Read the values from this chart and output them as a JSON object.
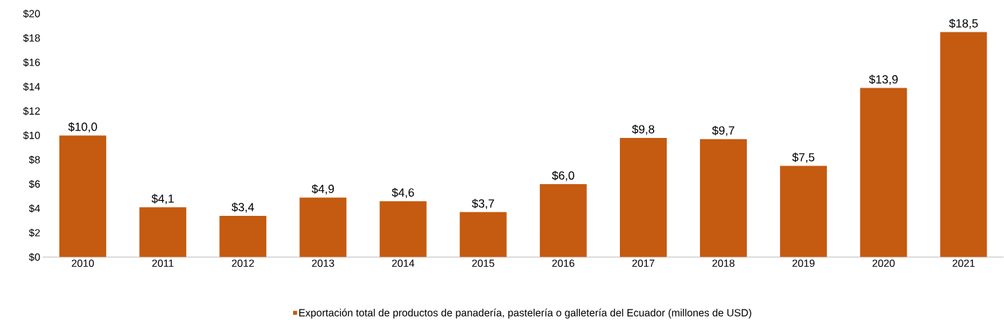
{
  "chart_data": {
    "type": "bar",
    "categories": [
      "2010",
      "2011",
      "2012",
      "2013",
      "2014",
      "2015",
      "2016",
      "2017",
      "2018",
      "2019",
      "2020",
      "2021"
    ],
    "series": [
      {
        "name": "Exportación total de productos de panadería, pastelería o galletería del Ecuador (millones de USD)",
        "color": "#c55a11",
        "values": [
          10.0,
          4.1,
          3.4,
          4.9,
          4.6,
          3.7,
          6.0,
          9.8,
          9.7,
          7.5,
          13.9,
          18.5
        ]
      }
    ],
    "value_labels": [
      "$10,0",
      "$4,1",
      "$3,4",
      "$4,9",
      "$4,6",
      "$3,7",
      "$6,0",
      "$9,8",
      "$9,7",
      "$7,5",
      "$13,9",
      "$18,5"
    ],
    "ylim": [
      0,
      20
    ],
    "yticks": [
      {
        "value": 0,
        "label": "$0"
      },
      {
        "value": 2,
        "label": "$2"
      },
      {
        "value": 4,
        "label": "$4"
      },
      {
        "value": 6,
        "label": "$6"
      },
      {
        "value": 8,
        "label": "$8"
      },
      {
        "value": 10,
        "label": "$10"
      },
      {
        "value": 12,
        "label": "$12"
      },
      {
        "value": 14,
        "label": "$14"
      },
      {
        "value": 16,
        "label": "$16"
      },
      {
        "value": 18,
        "label": "$18"
      },
      {
        "value": 20,
        "label": "$20"
      }
    ],
    "legend": "bottom",
    "grid": false
  }
}
